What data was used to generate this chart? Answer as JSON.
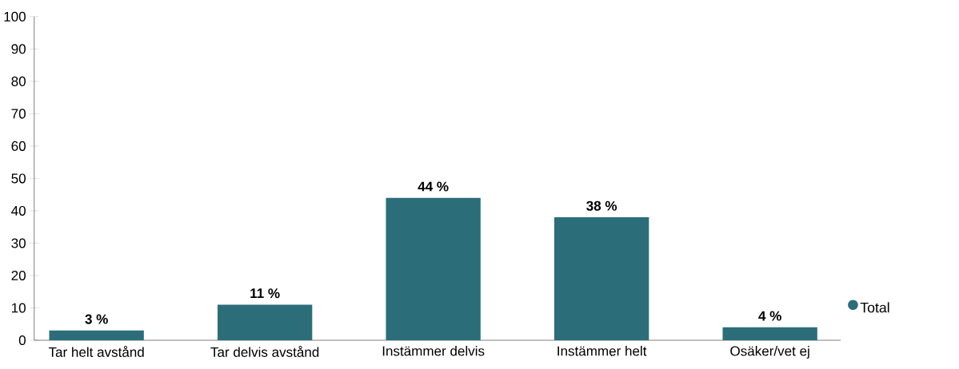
{
  "chart_data": {
    "type": "bar",
    "categories": [
      "Tar helt avstånd",
      "Tar delvis avstånd",
      "Instämmer delvis",
      "Instämmer helt",
      "Osäker/vet ej"
    ],
    "series": [
      {
        "name": "Total",
        "color": "#2b6e7a",
        "values": [
          3,
          11,
          44,
          38,
          4
        ],
        "value_labels": [
          "3 %",
          "11 %",
          "44 %",
          "38 %",
          "4 %"
        ]
      }
    ],
    "ylim": [
      0,
      100
    ],
    "yticks": [
      0,
      10,
      20,
      30,
      40,
      50,
      60,
      70,
      80,
      90,
      100
    ],
    "grid": false,
    "legend": "right"
  }
}
